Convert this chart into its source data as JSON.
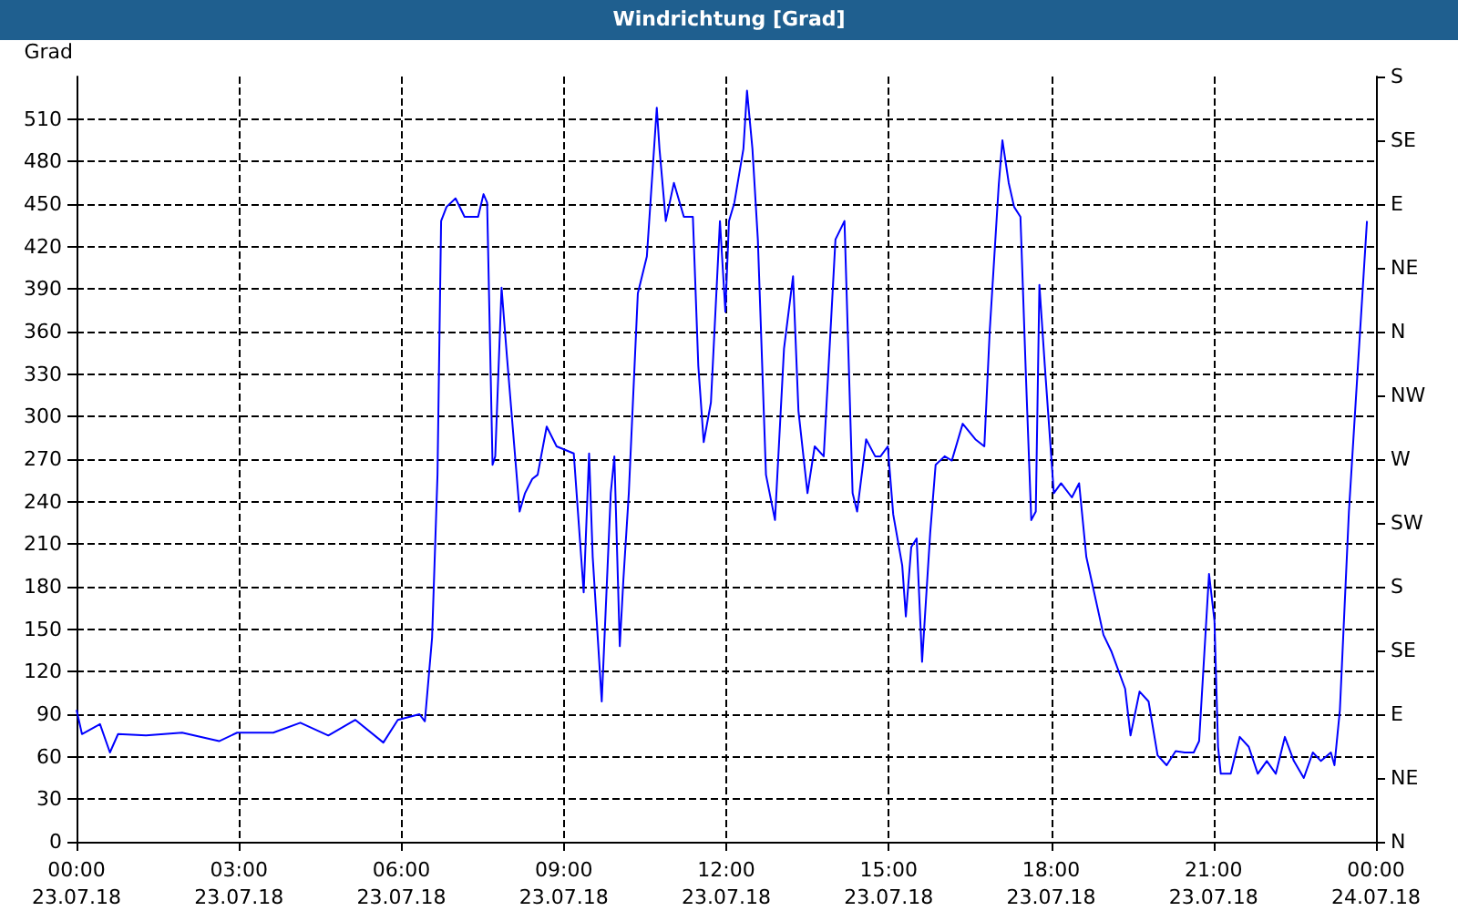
{
  "chart_data": {
    "type": "line",
    "title": "Windrichtung [Grad]",
    "ylabel": "Grad",
    "grid": true,
    "marker": "none",
    "line_style": "solid",
    "xlim": [
      "--07-23T00:00",
      "--07-24T00:00"
    ],
    "xticks": [
      {
        "value": "--07-23T00:00",
        "label": "00:00\n23.07.18"
      },
      {
        "value": "--07-23T03:00",
        "label": "03:00\n23.07.18"
      },
      {
        "value": "--07-23T06:00",
        "label": "06:00\n23.07.18"
      },
      {
        "value": "--07-23T09:00",
        "label": "09:00\n23.07.18"
      },
      {
        "value": "--07-23T12:00",
        "label": "12:00\n23.07.18"
      },
      {
        "value": "--07-23T15:00",
        "label": "15:00\n23.07.18"
      },
      {
        "value": "--07-23T18:00",
        "label": "18:00\n23.07.18"
      },
      {
        "value": "--07-23T21:00",
        "label": "21:00\n23.07.18"
      },
      {
        "value": "--07-24T00:00",
        "label": "00:00\n24.07.18"
      }
    ],
    "ylim": [
      0,
      540
    ],
    "yticks": [
      0,
      30,
      60,
      90,
      120,
      150,
      180,
      210,
      240,
      270,
      300,
      330,
      360,
      390,
      420,
      450,
      480,
      510
    ],
    "y2_categories": [
      "S",
      "SE",
      "E",
      "NE",
      "N",
      "NW",
      "W",
      "SW",
      "S",
      "SE",
      "E",
      "NE",
      "N"
    ],
    "series": [
      {
        "color": "#0000ff",
        "x": [
          "--07-23T00:00",
          "--07-23T00:06",
          "--07-23T00:26",
          "--07-23T00:37",
          "--07-23T00:46",
          "--07-23T01:17",
          "--07-23T01:57",
          "--07-23T02:38",
          "--07-23T02:58",
          "--07-23T03:38",
          "--07-23T04:08",
          "--07-23T04:39",
          "--07-23T05:09",
          "--07-23T05:40",
          "--07-23T05:56",
          "--07-23T06:20",
          "--07-23T06:26",
          "--07-23T06:34",
          "--07-23T06:40",
          "--07-23T06:44",
          "--07-23T06:50",
          "--07-23T07:00",
          "--07-23T07:10",
          "--07-23T07:25",
          "--07-23T07:31",
          "--07-23T07:35",
          "--07-23T07:41",
          "--07-23T07:44",
          "--07-23T07:51",
          "--07-23T07:57",
          "--07-23T08:11",
          "--07-23T08:17",
          "--07-23T08:25",
          "--07-23T08:31",
          "--07-23T08:41",
          "--07-23T08:52",
          "--07-23T09:11",
          "--07-23T09:22",
          "--07-23T09:28",
          "--07-23T09:32",
          "--07-23T09:42",
          "--07-23T09:52",
          "--07-23T09:56",
          "--07-23T10:02",
          "--07-23T10:06",
          "--07-23T10:12",
          "--07-23T10:22",
          "--07-23T10:32",
          "--07-23T10:43",
          "--07-23T10:46",
          "--07-23T10:53",
          "--07-23T11:02",
          "--07-23T11:13",
          "--07-23T11:23",
          "--07-23T11:29",
          "--07-23T11:35",
          "--07-23T11:43",
          "--07-23T11:53",
          "--07-23T11:59",
          "--07-23T12:03",
          "--07-23T12:09",
          "--07-23T12:19",
          "--07-23T12:23",
          "--07-23T12:29",
          "--07-23T12:35",
          "--07-23T12:44",
          "--07-23T12:54",
          "--07-23T13:04",
          "--07-23T13:14",
          "--07-23T13:20",
          "--07-23T13:30",
          "--07-23T13:38",
          "--07-23T13:48",
          "--07-23T14:01",
          "--07-23T14:11",
          "--07-23T14:20",
          "--07-23T14:25",
          "--07-23T14:35",
          "--07-23T14:45",
          "--07-23T14:51",
          "--07-23T14:59",
          "--07-23T15:05",
          "--07-23T15:15",
          "--07-23T15:19",
          "--07-23T15:25",
          "--07-23T15:31",
          "--07-23T15:37",
          "--07-23T15:46",
          "--07-23T15:52",
          "--07-23T16:02",
          "--07-23T16:10",
          "--07-23T16:22",
          "--07-23T16:36",
          "--07-23T16:46",
          "--07-23T16:52",
          "--07-23T17:02",
          "--07-23T17:06",
          "--07-23T17:13",
          "--07-23T17:19",
          "--07-23T17:26",
          "--07-23T17:32",
          "--07-23T17:38",
          "--07-23T17:43",
          "--07-23T17:47",
          "--07-23T17:53",
          "--07-23T18:03",
          "--07-23T18:11",
          "--07-23T18:23",
          "--07-23T18:31",
          "--07-23T18:39",
          "--07-23T18:58",
          "--07-23T19:07",
          "--07-23T19:22",
          "--07-23T19:28",
          "--07-23T19:38",
          "--07-23T19:48",
          "--07-23T19:58",
          "--07-23T20:08",
          "--07-23T20:18",
          "--07-23T20:28",
          "--07-23T20:38",
          "--07-23T20:44",
          "--07-23T20:55",
          "--07-23T21:01",
          "--07-23T21:05",
          "--07-23T21:08",
          "--07-23T21:19",
          "--07-23T21:29",
          "--07-23T21:39",
          "--07-23T21:49",
          "--07-23T21:59",
          "--07-23T22:09",
          "--07-23T22:19",
          "--07-23T22:29",
          "--07-23T22:40",
          "--07-23T22:50",
          "--07-23T22:59",
          "--07-23T23:10",
          "--07-23T23:14",
          "--07-23T23:20",
          "--07-23T23:30",
          "--07-23T23:40",
          "--07-23T23:50"
        ],
        "values": [
          93,
          76,
          83,
          63,
          76,
          75,
          77,
          71,
          77,
          77,
          84,
          75,
          86,
          70,
          86,
          90,
          85,
          144,
          259,
          438,
          448,
          454,
          441,
          441,
          457,
          451,
          266,
          272,
          391,
          342,
          233,
          246,
          256,
          259,
          293,
          279,
          274,
          176,
          274,
          201,
          99,
          246,
          272,
          138,
          185,
          246,
          387,
          413,
          518,
          489,
          438,
          465,
          441,
          441,
          336,
          282,
          310,
          438,
          374,
          438,
          451,
          489,
          530,
          489,
          425,
          259,
          227,
          348,
          399,
          304,
          246,
          279,
          272,
          425,
          438,
          246,
          233,
          284,
          272,
          272,
          279,
          231,
          195,
          159,
          208,
          214,
          127,
          218,
          266,
          272,
          269,
          295,
          284,
          279,
          361,
          464,
          495,
          465,
          448,
          441,
          330,
          227,
          233,
          393,
          336,
          246,
          253,
          243,
          253,
          201,
          146,
          134,
          108,
          75,
          106,
          99,
          61,
          54,
          64,
          63,
          63,
          71,
          189,
          156,
          67,
          48,
          48,
          74,
          67,
          48,
          57,
          48,
          74,
          57,
          45,
          63,
          57,
          63,
          54,
          93,
          233,
          336,
          438
        ]
      }
    ]
  }
}
